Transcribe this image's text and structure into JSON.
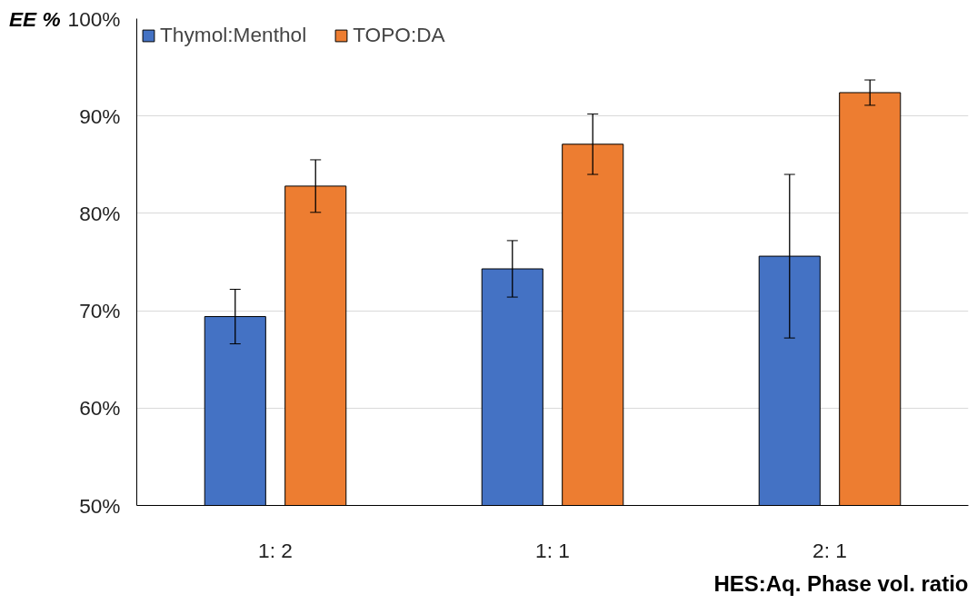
{
  "chart_data": {
    "type": "bar",
    "xlabel": "HES:Aq. Phase vol. ratio",
    "ylabel": "EE %",
    "categories": [
      "1: 2",
      "1: 1",
      "2: 1"
    ],
    "series": [
      {
        "name": "Thymol:Menthol",
        "color": "#4472c4",
        "values": [
          69.4,
          74.3,
          75.6
        ],
        "errors": [
          2.8,
          2.9,
          8.4
        ]
      },
      {
        "name": "TOPO:DA",
        "color": "#ed7d31",
        "values": [
          82.8,
          87.1,
          92.4
        ],
        "errors": [
          2.7,
          3.1,
          1.3
        ]
      }
    ],
    "ylim": [
      50,
      100
    ],
    "yticks": [
      {
        "value": 50,
        "label": "50%"
      },
      {
        "value": 60,
        "label": "60%"
      },
      {
        "value": 70,
        "label": "70%"
      },
      {
        "value": 80,
        "label": "80%"
      },
      {
        "value": 90,
        "label": "90%"
      },
      {
        "value": 100,
        "label": "100%"
      }
    ],
    "grid": "y",
    "legend": "top left"
  }
}
